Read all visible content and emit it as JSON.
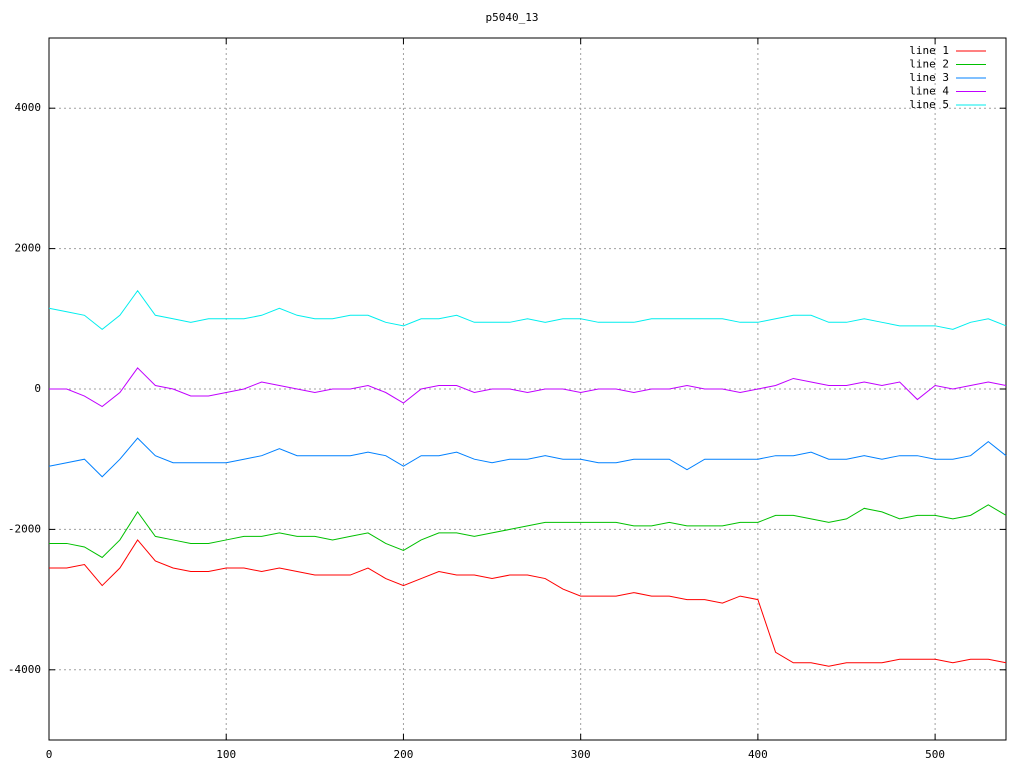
{
  "chart_data": {
    "type": "line",
    "title": "p5040_13",
    "x": [
      0,
      10,
      20,
      30,
      40,
      50,
      60,
      70,
      80,
      90,
      100,
      110,
      120,
      130,
      140,
      150,
      160,
      170,
      180,
      190,
      200,
      210,
      220,
      230,
      240,
      250,
      260,
      270,
      280,
      290,
      300,
      310,
      320,
      330,
      340,
      350,
      360,
      370,
      380,
      390,
      400,
      410,
      420,
      430,
      440,
      450,
      460,
      470,
      480,
      490,
      500,
      510,
      520,
      530,
      540
    ],
    "xlim": [
      0,
      540
    ],
    "xticks": [
      0,
      100,
      200,
      300,
      400,
      500
    ],
    "ylim": [
      -5000,
      5000
    ],
    "yticks": [
      -4000,
      -2000,
      0,
      2000,
      4000
    ],
    "grid": true,
    "legend": "top-right",
    "series": [
      {
        "name": "line 1",
        "color": "#ff0000",
        "values": [
          -2550,
          -2550,
          -2500,
          -2800,
          -2550,
          -2150,
          -2450,
          -2550,
          -2600,
          -2600,
          -2550,
          -2550,
          -2600,
          -2550,
          -2600,
          -2650,
          -2650,
          -2650,
          -2550,
          -2700,
          -2800,
          -2700,
          -2600,
          -2650,
          -2650,
          -2700,
          -2650,
          -2650,
          -2700,
          -2850,
          -2950,
          -2950,
          -2950,
          -2900,
          -2950,
          -2950,
          -3000,
          -3000,
          -3050,
          -2950,
          -3000,
          -3750,
          -3900,
          -3900,
          -3950,
          -3900,
          -3900,
          -3900,
          -3850,
          -3850,
          -3850,
          -3900,
          -3850,
          -3850,
          -3900
        ]
      },
      {
        "name": "line 2",
        "color": "#00c000",
        "values": [
          -2200,
          -2200,
          -2250,
          -2400,
          -2150,
          -1750,
          -2100,
          -2150,
          -2200,
          -2200,
          -2150,
          -2100,
          -2100,
          -2050,
          -2100,
          -2100,
          -2150,
          -2100,
          -2050,
          -2200,
          -2300,
          -2150,
          -2050,
          -2050,
          -2100,
          -2050,
          -2000,
          -1950,
          -1900,
          -1900,
          -1900,
          -1900,
          -1900,
          -1950,
          -1950,
          -1900,
          -1950,
          -1950,
          -1950,
          -1900,
          -1900,
          -1800,
          -1800,
          -1850,
          -1900,
          -1850,
          -1700,
          -1750,
          -1850,
          -1800,
          -1800,
          -1850,
          -1800,
          -1650,
          -1800
        ]
      },
      {
        "name": "line 3",
        "color": "#0080ff",
        "values": [
          -1100,
          -1050,
          -1000,
          -1250,
          -1000,
          -700,
          -950,
          -1050,
          -1050,
          -1050,
          -1050,
          -1000,
          -950,
          -850,
          -950,
          -950,
          -950,
          -950,
          -900,
          -950,
          -1100,
          -950,
          -950,
          -900,
          -1000,
          -1050,
          -1000,
          -1000,
          -950,
          -1000,
          -1000,
          -1050,
          -1050,
          -1000,
          -1000,
          -1000,
          -1150,
          -1000,
          -1000,
          -1000,
          -1000,
          -950,
          -950,
          -900,
          -1000,
          -1000,
          -950,
          -1000,
          -950,
          -950,
          -1000,
          -1000,
          -950,
          -750,
          -950
        ]
      },
      {
        "name": "line 4",
        "color": "#c000ff",
        "values": [
          0,
          0,
          -100,
          -250,
          -50,
          300,
          50,
          0,
          -100,
          -100,
          -50,
          0,
          100,
          50,
          0,
          -50,
          0,
          0,
          50,
          -50,
          -200,
          0,
          50,
          50,
          -50,
          0,
          0,
          -50,
          0,
          0,
          -50,
          0,
          0,
          -50,
          0,
          0,
          50,
          0,
          0,
          -50,
          0,
          50,
          150,
          100,
          50,
          50,
          100,
          50,
          100,
          -150,
          50,
          0,
          50,
          100,
          50
        ]
      },
      {
        "name": "line 5",
        "color": "#00eeee",
        "values": [
          1150,
          1100,
          1050,
          850,
          1050,
          1400,
          1050,
          1000,
          950,
          1000,
          1000,
          1000,
          1050,
          1150,
          1050,
          1000,
          1000,
          1050,
          1050,
          950,
          900,
          1000,
          1000,
          1050,
          950,
          950,
          950,
          1000,
          950,
          1000,
          1000,
          950,
          950,
          950,
          1000,
          1000,
          1000,
          1000,
          1000,
          950,
          950,
          1000,
          1050,
          1050,
          950,
          950,
          1000,
          950,
          900,
          900,
          900,
          850,
          950,
          1000,
          900
        ]
      }
    ]
  }
}
